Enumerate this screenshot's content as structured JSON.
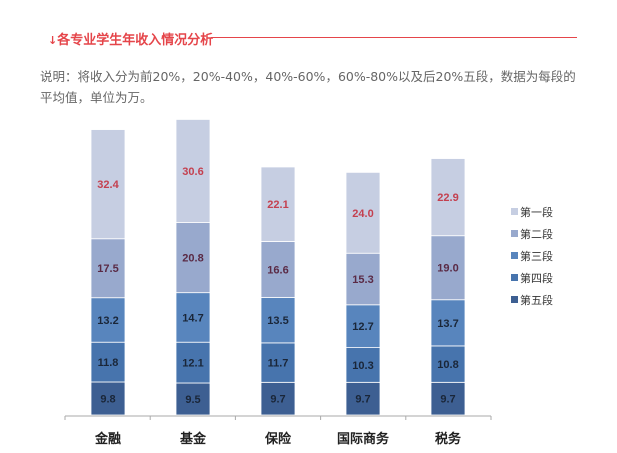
{
  "header": {
    "arrow": "↓",
    "title": "各专业学生年收入情况分析",
    "note": "说明：将收入分为前20%，20%-40%，40%-60%，60%-80%以及后20%五段，数据为每段的平均值，单位为万。"
  },
  "chart_data": {
    "type": "stacked-bar",
    "categories": [
      "金融",
      "基金",
      "保险",
      "国际商务",
      "税务"
    ],
    "series": [
      {
        "name": "第五段",
        "values": [
          9.8,
          9.5,
          9.7,
          9.7,
          9.7
        ],
        "color": "#3d5f92",
        "label_color": "#1a2638"
      },
      {
        "name": "第四段",
        "values": [
          11.8,
          12.1,
          11.7,
          10.3,
          10.8
        ],
        "color": "#4774ad",
        "label_color": "#1a2638"
      },
      {
        "name": "第三段",
        "values": [
          13.2,
          14.7,
          13.5,
          12.7,
          13.7
        ],
        "color": "#5885bd",
        "label_color": "#1a2638"
      },
      {
        "name": "第二段",
        "values": [
          17.5,
          20.8,
          16.6,
          15.3,
          19.0
        ],
        "color": "#98a9cd",
        "label_color": "#5a2a45"
      },
      {
        "name": "第一段",
        "values": [
          32.4,
          30.6,
          22.1,
          24.0,
          22.9
        ],
        "color": "#c6cee2",
        "label_color": "#c4404f"
      }
    ],
    "legend": "right",
    "grid": false
  }
}
